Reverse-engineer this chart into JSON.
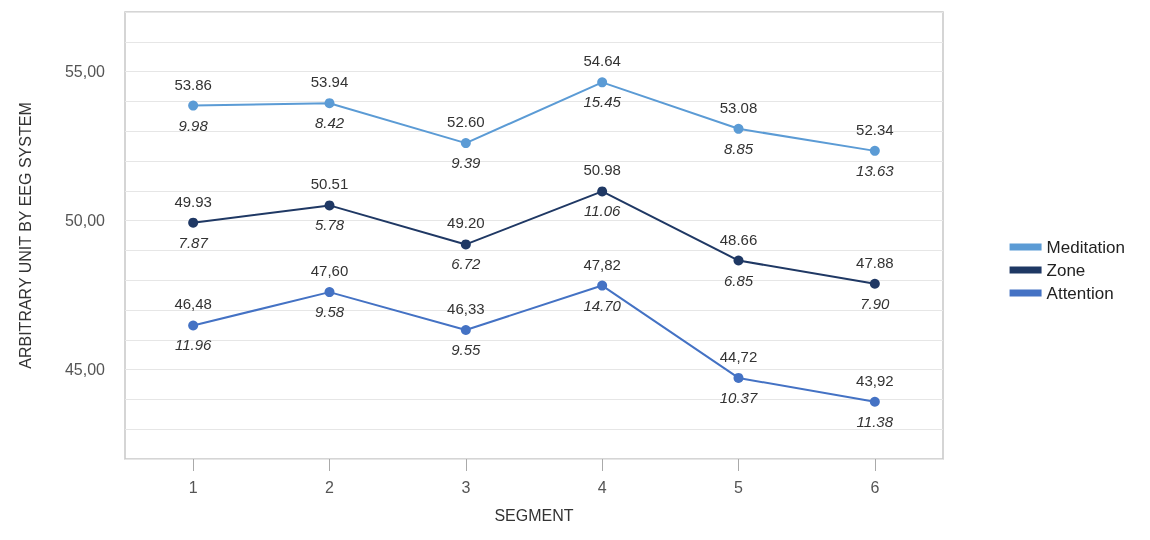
{
  "chart_data": {
    "type": "line",
    "xlabel": "SEGMENT",
    "ylabel": "ARBITRARY UNIT BY EEG SYSTEM",
    "categories": [
      "1",
      "2",
      "3",
      "4",
      "5",
      "6"
    ],
    "series": [
      {
        "name": "Meditation",
        "color": "#5b9bd5",
        "values": [
          53.86,
          53.94,
          52.6,
          54.64,
          53.08,
          52.34
        ],
        "value_labels": [
          "53.86",
          "53.94",
          "52.60",
          "54.64",
          "53.08",
          "52.34"
        ]
      },
      {
        "name": "Zone",
        "color": "#1f3864",
        "values": [
          49.93,
          50.51,
          49.2,
          50.98,
          48.66,
          47.88
        ],
        "value_labels": [
          "49.93",
          "50.51",
          "49.20",
          "50.98",
          "48.66",
          "47.88"
        ]
      },
      {
        "name": "Attention",
        "color": "#4472c4",
        "values": [
          46.48,
          47.6,
          46.33,
          47.82,
          44.72,
          43.92
        ],
        "value_labels": [
          "46,48",
          "47,60",
          "46,33",
          "47,82",
          "44,72",
          "43,92"
        ]
      }
    ],
    "ylim": [
      42,
      57
    ],
    "yticks": [
      {
        "value": 43,
        "label": null
      },
      {
        "value": 44,
        "label": null
      },
      {
        "value": 45,
        "label": "45,00"
      },
      {
        "value": 46,
        "label": null
      },
      {
        "value": 47,
        "label": null
      },
      {
        "value": 48,
        "label": null
      },
      {
        "value": 49,
        "label": null
      },
      {
        "value": 50,
        "label": "50,00"
      },
      {
        "value": 51,
        "label": null
      },
      {
        "value": 52,
        "label": null
      },
      {
        "value": 53,
        "label": null
      },
      {
        "value": 54,
        "label": null
      },
      {
        "value": 55,
        "label": "55,00"
      },
      {
        "value": 56,
        "label": null
      }
    ],
    "grid": "y",
    "legend": "right",
    "marker": "circle",
    "line_style": "solid",
    "annotations": [
      {
        "text": "9.98",
        "x": "1",
        "y": 53.86
      },
      {
        "text": "8.42",
        "x": "2",
        "y": 53.94
      },
      {
        "text": "9.39",
        "x": "3",
        "y": 52.6
      },
      {
        "text": "15.45",
        "x": "4",
        "y": 54.64
      },
      {
        "text": "8.85",
        "x": "5",
        "y": 53.08
      },
      {
        "text": "13.63",
        "x": "6",
        "y": 52.34
      },
      {
        "text": "7.87",
        "x": "1",
        "y": 49.93
      },
      {
        "text": "5.78",
        "x": "2",
        "y": 50.51
      },
      {
        "text": "6.72",
        "x": "3",
        "y": 49.2
      },
      {
        "text": "11.06",
        "x": "4",
        "y": 50.98
      },
      {
        "text": "6.85",
        "x": "5",
        "y": 48.66
      },
      {
        "text": "7.90",
        "x": "6",
        "y": 47.88
      },
      {
        "text": "11.96",
        "x": "1",
        "y": 46.48
      },
      {
        "text": "9.58",
        "x": "2",
        "y": 47.6
      },
      {
        "text": "9.55",
        "x": "3",
        "y": 46.33
      },
      {
        "text": "14.70",
        "x": "4",
        "y": 47.82
      },
      {
        "text": "10.37",
        "x": "5",
        "y": 44.72
      },
      {
        "text": "11.38",
        "x": "6",
        "y": 43.92
      }
    ]
  }
}
